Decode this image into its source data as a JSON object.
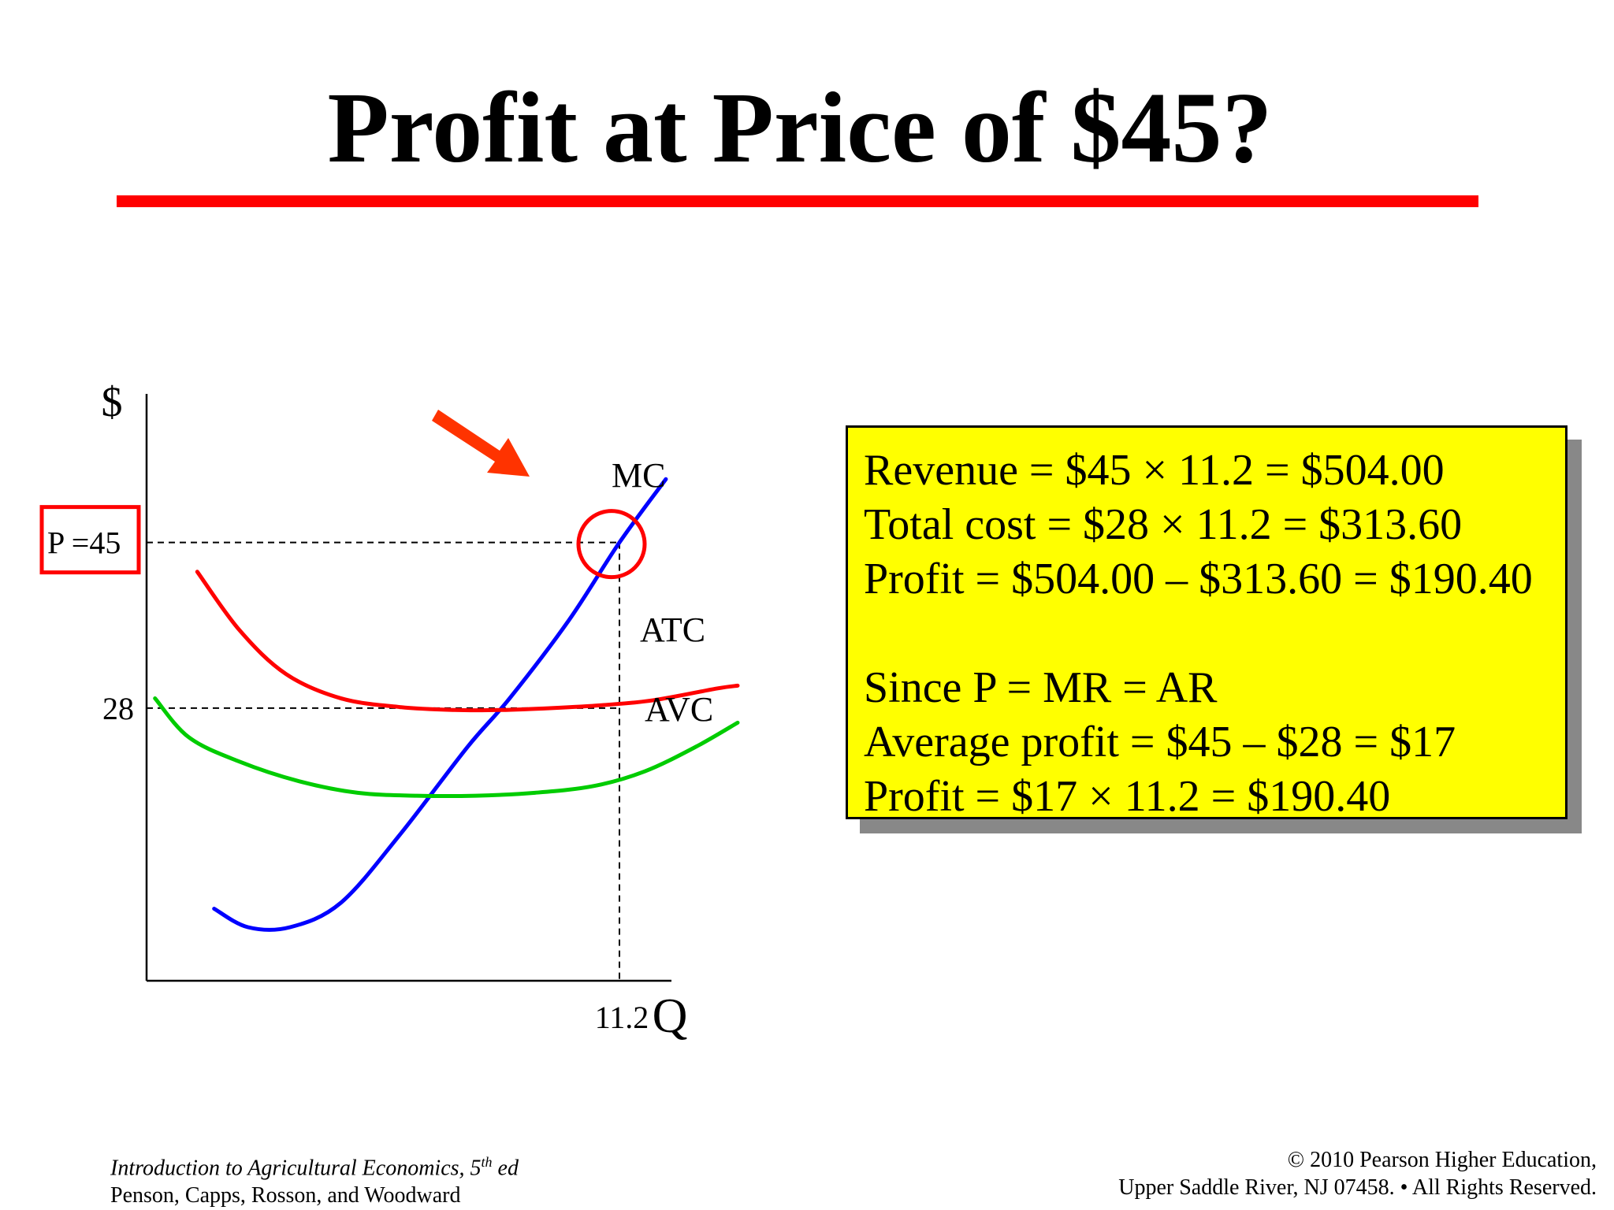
{
  "slide": {
    "title": "Profit at Price of $45?",
    "accent_color": "#ff0000"
  },
  "chart_data": {
    "type": "line",
    "title": "",
    "ylabel": "$",
    "xlabel": "Q",
    "y_ticks": [
      {
        "value": 45,
        "label": "P =45",
        "boxed": true
      },
      {
        "value": 28,
        "label": "28",
        "boxed": false
      }
    ],
    "x_ticks": [
      {
        "value": 11.2,
        "label": "11.2"
      }
    ],
    "xlim": [
      0,
      14
    ],
    "ylim": [
      0,
      55
    ],
    "series": [
      {
        "name": "MC",
        "color": "#0000ff",
        "x": [
          1.6,
          2.4,
          3.4,
          4.6,
          6.0,
          7.6,
          8.6,
          10.0,
          11.2,
          12.3
        ],
        "y": [
          7.4,
          5.5,
          5.5,
          8.0,
          15.0,
          24.0,
          29.0,
          37.0,
          45.0,
          51.5
        ]
      },
      {
        "name": "ATC",
        "color": "#ff0000",
        "x": [
          1.2,
          2.2,
          3.3,
          4.6,
          6.0,
          7.3,
          8.4,
          9.6,
          10.8,
          12.0,
          13.5,
          14.0
        ],
        "y": [
          42.0,
          36.0,
          31.5,
          29.0,
          28.1,
          27.8,
          27.8,
          28.0,
          28.3,
          28.8,
          30.0,
          30.3
        ]
      },
      {
        "name": "AVC",
        "color": "#00cc00",
        "x": [
          0.2,
          1.0,
          2.2,
          3.6,
          5.0,
          6.4,
          7.8,
          9.2,
          10.6,
          11.8,
          13.0,
          14.0
        ],
        "y": [
          29.0,
          25.0,
          22.5,
          20.5,
          19.3,
          19.0,
          19.0,
          19.3,
          20.0,
          21.5,
          24.0,
          26.5
        ]
      }
    ],
    "annotations": [
      {
        "type": "circle",
        "x": 11.2,
        "y": 45,
        "color": "#ff0000",
        "note": "MC = P"
      },
      {
        "type": "arrow",
        "color": "#ff3300",
        "target": "MC = P"
      }
    ],
    "grid": false,
    "legend": "none"
  },
  "calculation_box": {
    "background": "#ffff00",
    "lines": [
      "Revenue = $45 × 11.2 = $504.00",
      "Total cost = $28 × 11.2 = $313.60",
      "Profit = $504.00 – $313.60 = $190.40",
      "",
      "Since P = MR = AR",
      "Average profit = $45 – $28 = $17",
      "Profit = $17 × 11.2 = $190.40"
    ]
  },
  "footer": {
    "left_title": "Introduction to Agricultural Economics, 5",
    "left_title_sup": "th",
    "left_title_suffix": " ed",
    "left_authors": "Penson, Capps, Rosson, and Woodward",
    "right_line1": "© 2010 Pearson Higher Education,",
    "right_line2": "Upper Saddle River, NJ 07458. • All Rights Reserved."
  }
}
